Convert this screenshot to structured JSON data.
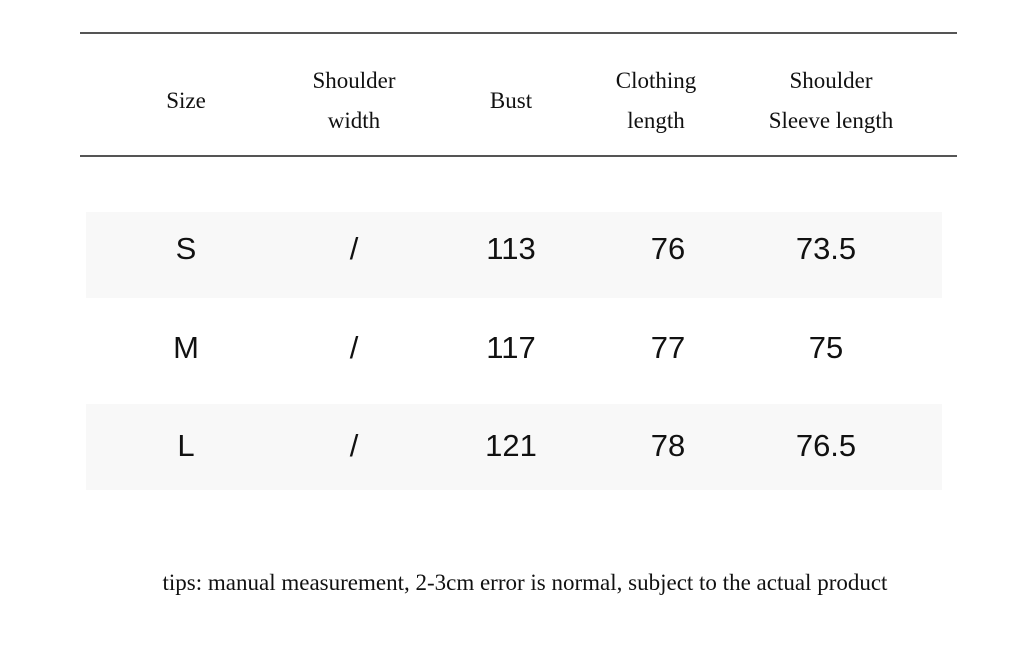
{
  "table": {
    "header": [
      [
        "Size"
      ],
      [
        "Shoulder",
        "width"
      ],
      [
        "Bust"
      ],
      [
        "Clothing",
        "length"
      ],
      [
        "Shoulder",
        "Sleeve length"
      ]
    ],
    "rows": [
      [
        "S",
        "/",
        "113",
        "76",
        "73.5"
      ],
      [
        "M",
        "/",
        "117",
        "77",
        "75"
      ],
      [
        "L",
        "/",
        "121",
        "78",
        "76.5"
      ]
    ]
  },
  "footer": {
    "tips": "tips: manual measurement, 2-3cm error is normal, subject to the actual product"
  }
}
